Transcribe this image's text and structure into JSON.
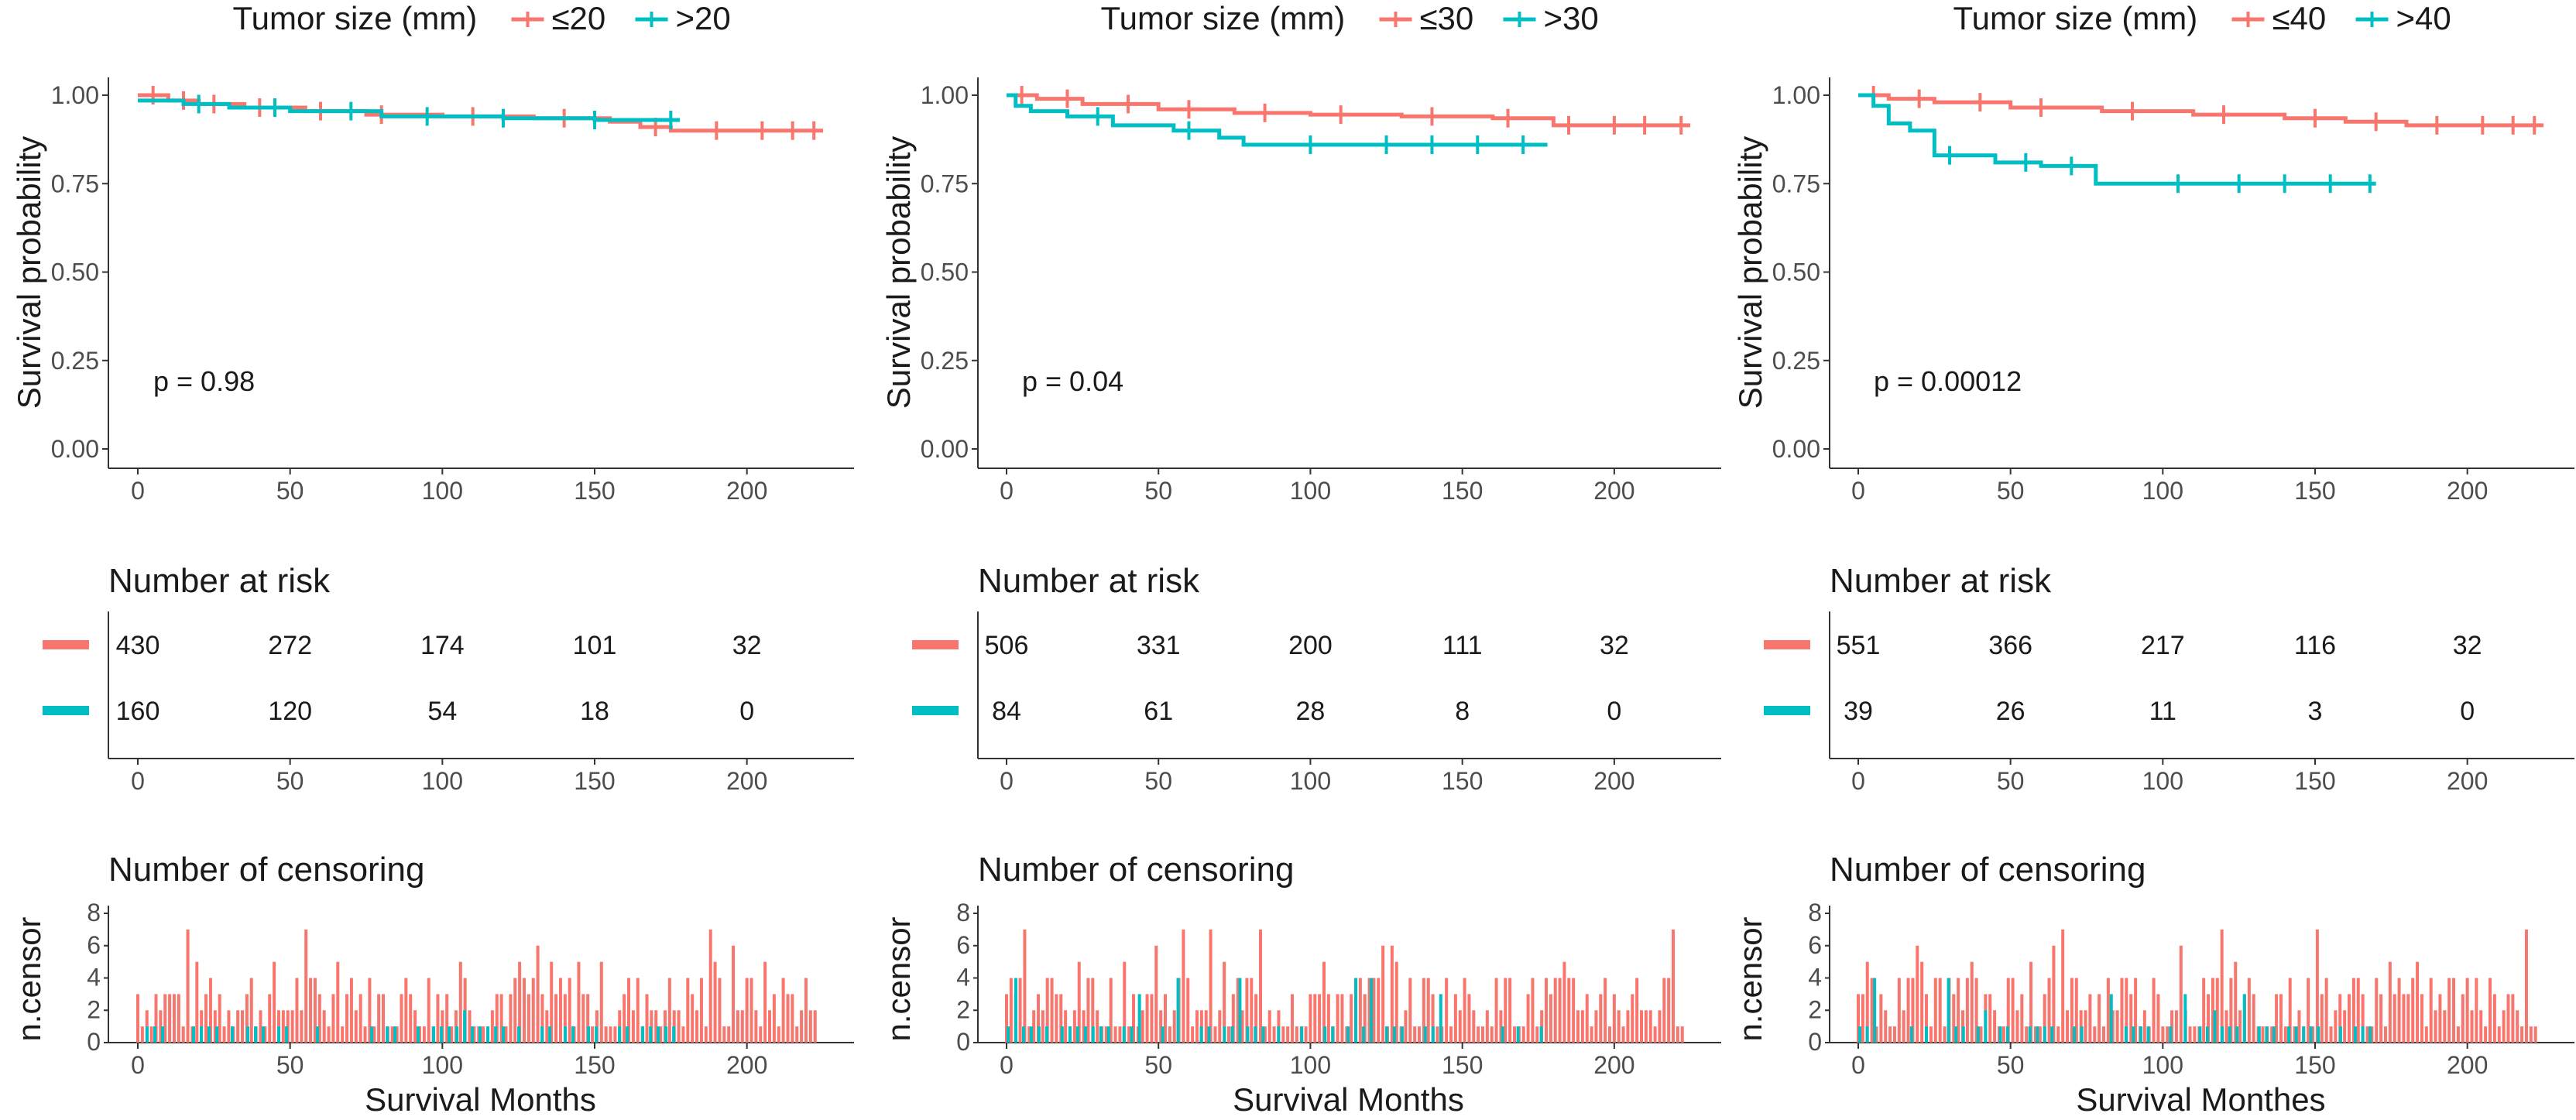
{
  "figure": {
    "censor_ylabel": "n.censor",
    "ylabel": "Survival probability",
    "risk_title": "Number at risk",
    "censor_title": "Number of censoring"
  },
  "colors": {
    "group1": "#F8766D",
    "group2": "#00BFC4"
  },
  "chart_data": [
    {
      "type": "line",
      "subtype": "kaplan-meier",
      "legend_title": "Tumor size (mm)",
      "legend": [
        "≤20",
        ">20"
      ],
      "p_value": "p = 0.98",
      "xlabel": "Survival Months",
      "xlim": [
        0,
        225
      ],
      "ylim": [
        0,
        1
      ],
      "x_ticks": [
        0,
        50,
        100,
        150,
        200
      ],
      "y_ticks": [
        "0.00",
        "0.25",
        "0.50",
        "0.75",
        "1.00"
      ],
      "series": [
        {
          "name": "≤20",
          "x": [
            0,
            10,
            20,
            35,
            55,
            75,
            100,
            130,
            155,
            165,
            175,
            225
          ],
          "y": [
            1.0,
            0.985,
            0.975,
            0.965,
            0.955,
            0.945,
            0.94,
            0.935,
            0.925,
            0.91,
            0.9,
            0.9
          ],
          "censor_x": [
            5,
            15,
            25,
            40,
            60,
            80,
            110,
            140,
            170,
            190,
            205,
            215,
            222
          ]
        },
        {
          "name": ">20",
          "x": [
            0,
            15,
            30,
            50,
            80,
            120,
            150,
            178
          ],
          "y": [
            0.985,
            0.975,
            0.965,
            0.955,
            0.94,
            0.935,
            0.93,
            0.93
          ],
          "censor_x": [
            20,
            45,
            70,
            95,
            120,
            150,
            175
          ]
        }
      ],
      "risk_table": {
        "times": [
          0,
          50,
          100,
          150,
          200
        ],
        "rows": [
          [
            430,
            272,
            174,
            101,
            32
          ],
          [
            160,
            120,
            54,
            18,
            0
          ]
        ]
      },
      "censor_ylim": [
        0,
        8
      ],
      "censor_ticks": [
        "0",
        "2",
        "4",
        "6",
        "8"
      ]
    },
    {
      "type": "line",
      "subtype": "kaplan-meier",
      "legend_title": "Tumor size (mm)",
      "legend": [
        "≤30",
        ">30"
      ],
      "p_value": "p = 0.04",
      "xlabel": "Survival Months",
      "xlim": [
        0,
        225
      ],
      "ylim": [
        0,
        1
      ],
      "x_ticks": [
        0,
        50,
        100,
        150,
        200
      ],
      "y_ticks": [
        "0.00",
        "0.25",
        "0.50",
        "0.75",
        "1.00"
      ],
      "series": [
        {
          "name": "≤30",
          "x": [
            0,
            10,
            25,
            50,
            75,
            100,
            130,
            160,
            180,
            225
          ],
          "y": [
            1.0,
            0.99,
            0.975,
            0.96,
            0.95,
            0.945,
            0.94,
            0.935,
            0.915,
            0.915
          ],
          "censor_x": [
            5,
            20,
            40,
            60,
            85,
            110,
            140,
            165,
            185,
            200,
            210,
            222
          ]
        },
        {
          "name": ">30",
          "x": [
            0,
            3,
            8,
            20,
            35,
            55,
            70,
            78,
            120,
            150,
            178
          ],
          "y": [
            1.0,
            0.97,
            0.955,
            0.94,
            0.915,
            0.9,
            0.88,
            0.86,
            0.86,
            0.86,
            0.86
          ],
          "censor_x": [
            30,
            60,
            100,
            125,
            140,
            155,
            170
          ]
        }
      ],
      "risk_table": {
        "times": [
          0,
          50,
          100,
          150,
          200
        ],
        "rows": [
          [
            506,
            331,
            200,
            111,
            32
          ],
          [
            84,
            61,
            28,
            8,
            0
          ]
        ]
      },
      "censor_ylim": [
        0,
        8
      ],
      "censor_ticks": [
        "0",
        "2",
        "4",
        "6",
        "8"
      ]
    },
    {
      "type": "line",
      "subtype": "kaplan-meier",
      "legend_title": "Tumor size (mm)",
      "legend": [
        "≤40",
        ">40"
      ],
      "p_value": "p = 0.00012",
      "xlabel": "Survival Monthes",
      "xlim": [
        0,
        225
      ],
      "ylim": [
        0,
        1
      ],
      "x_ticks": [
        0,
        50,
        100,
        150,
        200
      ],
      "y_ticks": [
        "0.00",
        "0.25",
        "0.50",
        "0.75",
        "1.00"
      ],
      "series": [
        {
          "name": "≤40",
          "x": [
            0,
            10,
            25,
            50,
            80,
            110,
            140,
            160,
            180,
            225
          ],
          "y": [
            1.0,
            0.99,
            0.98,
            0.965,
            0.955,
            0.945,
            0.935,
            0.925,
            0.915,
            0.915
          ],
          "censor_x": [
            5,
            20,
            40,
            60,
            90,
            120,
            150,
            170,
            190,
            205,
            215,
            222
          ]
        },
        {
          "name": ">40",
          "x": [
            0,
            5,
            10,
            17,
            25,
            45,
            60,
            78,
            120,
            170
          ],
          "y": [
            1.0,
            0.97,
            0.92,
            0.9,
            0.83,
            0.81,
            0.8,
            0.75,
            0.75,
            0.75
          ],
          "censor_x": [
            30,
            55,
            70,
            105,
            125,
            140,
            155,
            168
          ]
        }
      ],
      "risk_table": {
        "times": [
          0,
          50,
          100,
          150,
          200
        ],
        "rows": [
          [
            551,
            366,
            217,
            116,
            32
          ],
          [
            39,
            26,
            11,
            3,
            0
          ]
        ]
      },
      "censor_ylim": [
        0,
        8
      ],
      "censor_ticks": [
        "0",
        "2",
        "4",
        "6",
        "8"
      ]
    }
  ]
}
